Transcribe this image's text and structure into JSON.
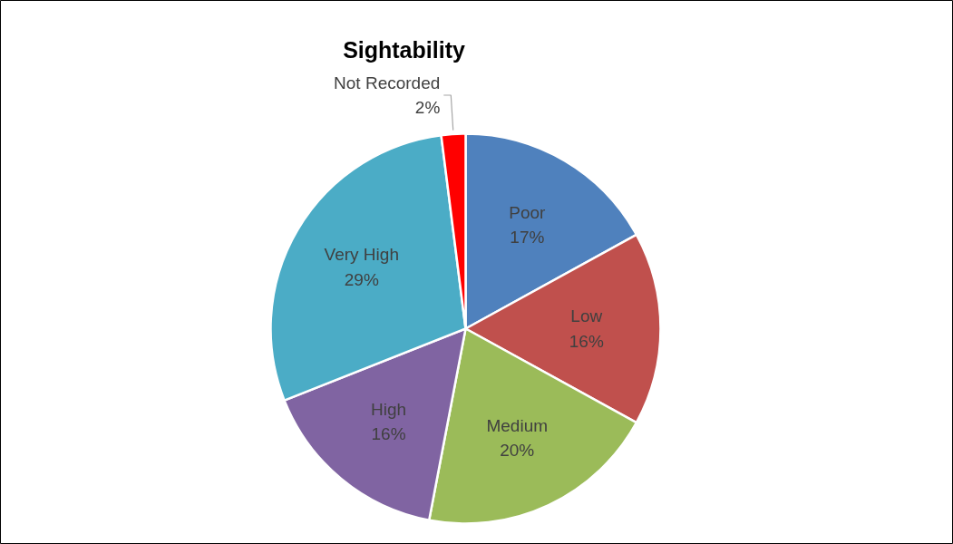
{
  "chart_data": {
    "type": "pie",
    "title": "Sightability",
    "categories": [
      "Poor",
      "Low",
      "Medium",
      "High",
      "Very High",
      "Not Recorded"
    ],
    "values": [
      17,
      16,
      20,
      16,
      29,
      2
    ],
    "value_labels": [
      "17%",
      "16%",
      "20%",
      "16%",
      "29%",
      "2%"
    ],
    "colors": [
      "#4f81bd",
      "#c0504d",
      "#9bbb59",
      "#8064a2",
      "#4bacc6",
      "#ff0000"
    ]
  }
}
